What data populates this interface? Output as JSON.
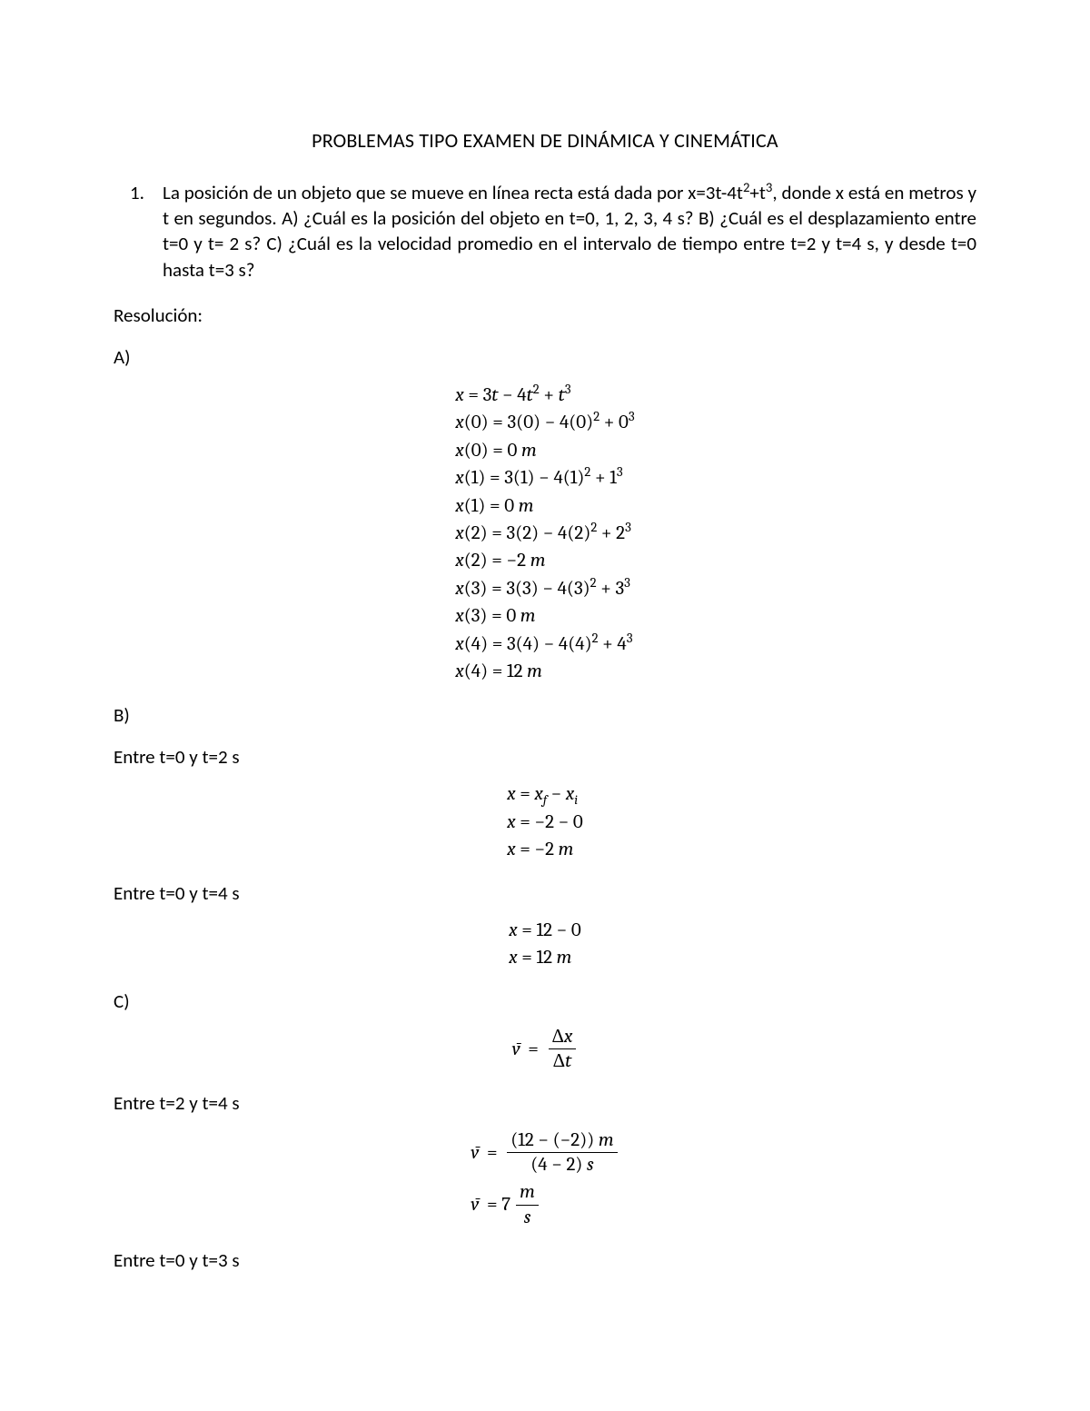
{
  "title": "PROBLEMAS TIPO EXAMEN DE DINÁMICA Y CINEMÁTICA",
  "problem": {
    "number": "1.",
    "text_part1": "La posición de un objeto que se mueve en línea recta está dada por x=3t-4t",
    "text_part1_sup": "2",
    "text_part1_mid": "+t",
    "text_part1_sup2": "3",
    "text_part1_end": ",",
    "text_line2": "donde x está en metros y t en segundos. A) ¿Cuál es la posición del objeto en t=0, 1,",
    "text_line3": "2, 3, 4 s? B) ¿Cuál es el desplazamiento entre t=0 y t= 2 s? C) ¿Cuál es la velocidad",
    "text_line4": "promedio en el intervalo de tiempo entre t=2 y t=4 s, y desde t=0 hasta t=3 s?"
  },
  "resolucion_label": "Resolución:",
  "labels": {
    "A": "A)",
    "B": "B)",
    "C": "C)",
    "entre_0_2": "Entre t=0 y t=2 s",
    "entre_0_4": "Entre t=0 y t=4 s",
    "entre_2_4": "Entre t=2 y t=4 s",
    "entre_0_3": "Entre t=0 y t=3 s"
  },
  "A": {
    "l1": "x = 3t − 4t² + t³",
    "l2": "x(0) = 3(0) − 4(0)² + 0³",
    "l3": "x(0) = 0 m",
    "l4": "x(1) = 3(1) − 4(1)² + 1³",
    "l5": "x(1) = 0 m",
    "l6": "x(2) = 3(2) − 4(2)² + 2³",
    "l7": "x(2) = −2 m",
    "l8": "x(3) = 3(3) − 4(3)² + 3³",
    "l9": "x(3) = 0 m",
    "l10": "x(4) = 3(4) − 4(4)² + 4³",
    "l11": "x(4) = 12 m"
  },
  "B1": {
    "l1": "x = x_f − x_i",
    "l2": "x = −2 − 0",
    "l3": "x = −2 m"
  },
  "B2": {
    "l1": "x = 12 − 0",
    "l2": "x = 12 m"
  },
  "C": {
    "vbar_label": "v̄ =",
    "frac1_num": "Δx",
    "frac1_den": "Δt",
    "frac2_num": "(12 − (−2)) m",
    "frac2_den": "(4 − 2) s",
    "result_prefix": "v̄ = 7",
    "unit_num": "m",
    "unit_den": "s"
  }
}
